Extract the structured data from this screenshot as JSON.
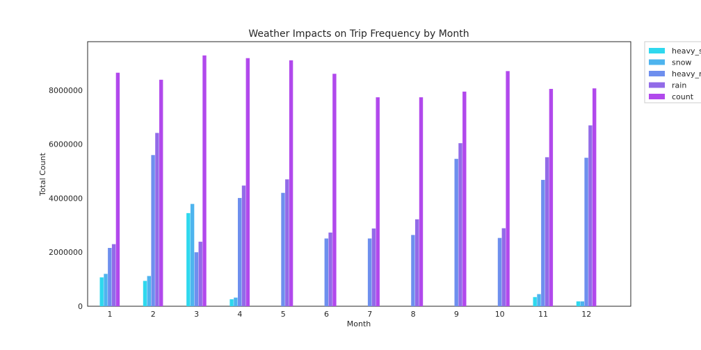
{
  "chart_data": {
    "type": "bar",
    "title": "Weather Impacts on Trip Frequency by Month",
    "xlabel": "Month",
    "ylabel": "Total Count",
    "categories": [
      "1",
      "2",
      "3",
      "4",
      "5",
      "6",
      "7",
      "8",
      "9",
      "10",
      "11",
      "12"
    ],
    "ylim": [
      0,
      9800000
    ],
    "yticks": [
      "0",
      "2000000",
      "4000000",
      "6000000",
      "8000000"
    ],
    "grid": false,
    "legend_position": "outside-top-right",
    "series": [
      {
        "name": "heavy_s",
        "color": "#2fd8ee",
        "values": [
          1070000,
          940000,
          3450000,
          260000,
          0,
          0,
          0,
          0,
          0,
          0,
          340000,
          180000
        ]
      },
      {
        "name": "snow",
        "color": "#4eb4ee",
        "values": [
          1200000,
          1120000,
          3790000,
          320000,
          0,
          0,
          0,
          0,
          0,
          0,
          450000,
          180000
        ]
      },
      {
        "name": "heavy_r",
        "color": "#6e8fee",
        "values": [
          2160000,
          5600000,
          2000000,
          4010000,
          4200000,
          2510000,
          2510000,
          2640000,
          5460000,
          2530000,
          4680000,
          5500000
        ]
      },
      {
        "name": "rain",
        "color": "#926be8",
        "values": [
          2300000,
          6420000,
          2390000,
          4470000,
          4700000,
          2730000,
          2880000,
          3220000,
          6040000,
          2890000,
          5520000,
          6700000
        ]
      },
      {
        "name": "count",
        "color": "#b149ec",
        "values": [
          8650000,
          8390000,
          9290000,
          9190000,
          9110000,
          8610000,
          7740000,
          7740000,
          7950000,
          8710000,
          8050000,
          8070000
        ]
      }
    ]
  }
}
